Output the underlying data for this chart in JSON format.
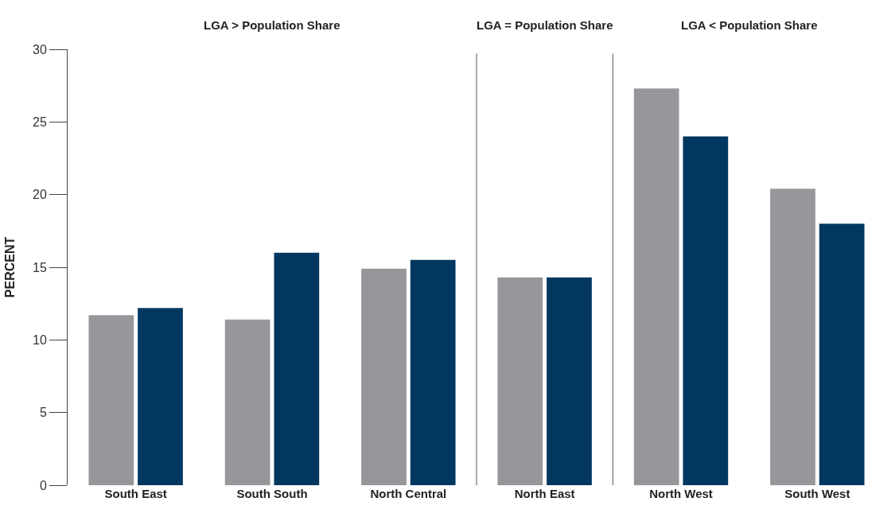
{
  "chart_data": {
    "type": "bar",
    "ylabel": "PERCENT",
    "categories": [
      "South East",
      "South South",
      "North Central",
      "North East",
      "North West",
      "South West"
    ],
    "series": [
      {
        "color": "#96979b",
        "values": [
          11.7,
          11.4,
          14.9,
          14.3,
          27.3,
          20.4
        ]
      },
      {
        "color": "#023860",
        "values": [
          12.2,
          16.0,
          15.5,
          14.3,
          24.0,
          18.0
        ]
      }
    ],
    "ylim": [
      0,
      30
    ],
    "yticks": [
      0,
      5,
      10,
      15,
      20,
      25,
      30
    ],
    "annotations": [
      "LGA > Population Share",
      "LGA = Population Share",
      "LGA < Population Share"
    ]
  }
}
